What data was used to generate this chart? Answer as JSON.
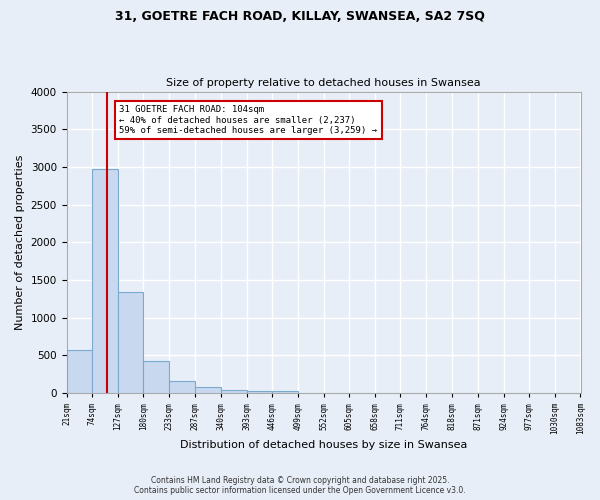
{
  "title_line1": "31, GOETRE FACH ROAD, KILLAY, SWANSEA, SA2 7SQ",
  "title_line2": "Size of property relative to detached houses in Swansea",
  "xlabel": "Distribution of detached houses by size in Swansea",
  "ylabel": "Number of detached properties",
  "footer_line1": "Contains HM Land Registry data © Crown copyright and database right 2025.",
  "footer_line2": "Contains public sector information licensed under the Open Government Licence v3.0.",
  "bin_edges": [
    21,
    74,
    127,
    180,
    233,
    287,
    340,
    393,
    446,
    499,
    552,
    605,
    658,
    711,
    764,
    818,
    871,
    924,
    977,
    1030,
    1083
  ],
  "bar_heights": [
    570,
    2970,
    1340,
    430,
    160,
    75,
    45,
    30,
    25,
    0,
    0,
    0,
    0,
    0,
    0,
    0,
    0,
    0,
    0,
    0
  ],
  "bar_color": "#c8d8ee",
  "bar_edge_color": "#7aaad0",
  "background_color": "#e8eef8",
  "grid_color": "#ffffff",
  "property_size": 104,
  "vline_color": "#cc0000",
  "annotation_text": "31 GOETRE FACH ROAD: 104sqm\n← 40% of detached houses are smaller (2,237)\n59% of semi-detached houses are larger (3,259) →",
  "annotation_box_color": "#ffffff",
  "annotation_box_edge_color": "#cc0000",
  "ylim": [
    0,
    4000
  ],
  "yticks": [
    0,
    500,
    1000,
    1500,
    2000,
    2500,
    3000,
    3500,
    4000
  ]
}
